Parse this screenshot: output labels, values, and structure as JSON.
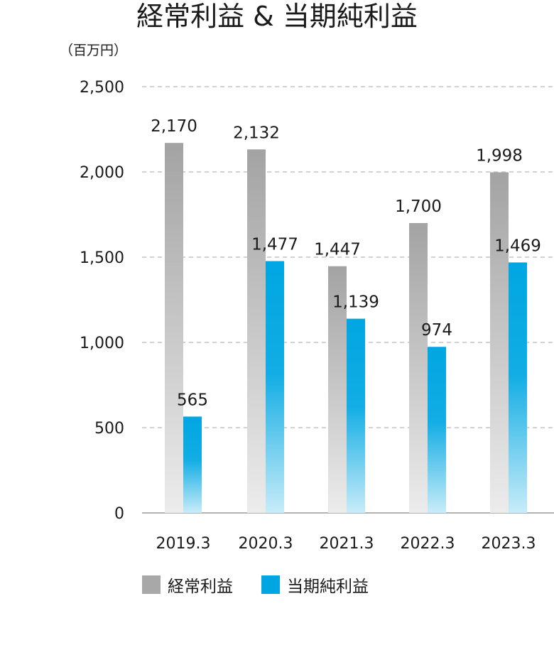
{
  "chart_data": {
    "type": "bar",
    "title": "経常利益 & 当期純利益",
    "unit_label": "（百万円）",
    "categories": [
      "2019.3",
      "2020.3",
      "2021.3",
      "2022.3",
      "2023.3"
    ],
    "series": [
      {
        "name": "経常利益",
        "values": [
          2170,
          2132,
          1447,
          1700,
          1998
        ],
        "labels": [
          "2,170",
          "2,132",
          "1,447",
          "1,700",
          "1,998"
        ],
        "color": "#a8a8a8"
      },
      {
        "name": "当期純利益",
        "values": [
          565,
          1477,
          1139,
          974,
          1469
        ],
        "labels": [
          "565",
          "1,477",
          "1,139",
          "974",
          "1,469"
        ],
        "color": "#00a6e2"
      }
    ],
    "yticks": [
      0,
      500,
      1000,
      1500,
      2000,
      2500
    ],
    "ytick_labels": [
      "0",
      "500",
      "1,000",
      "1,500",
      "2,000",
      "2,500"
    ],
    "ylim": [
      0,
      2500
    ],
    "grid": true,
    "legend_position": "bottom"
  }
}
